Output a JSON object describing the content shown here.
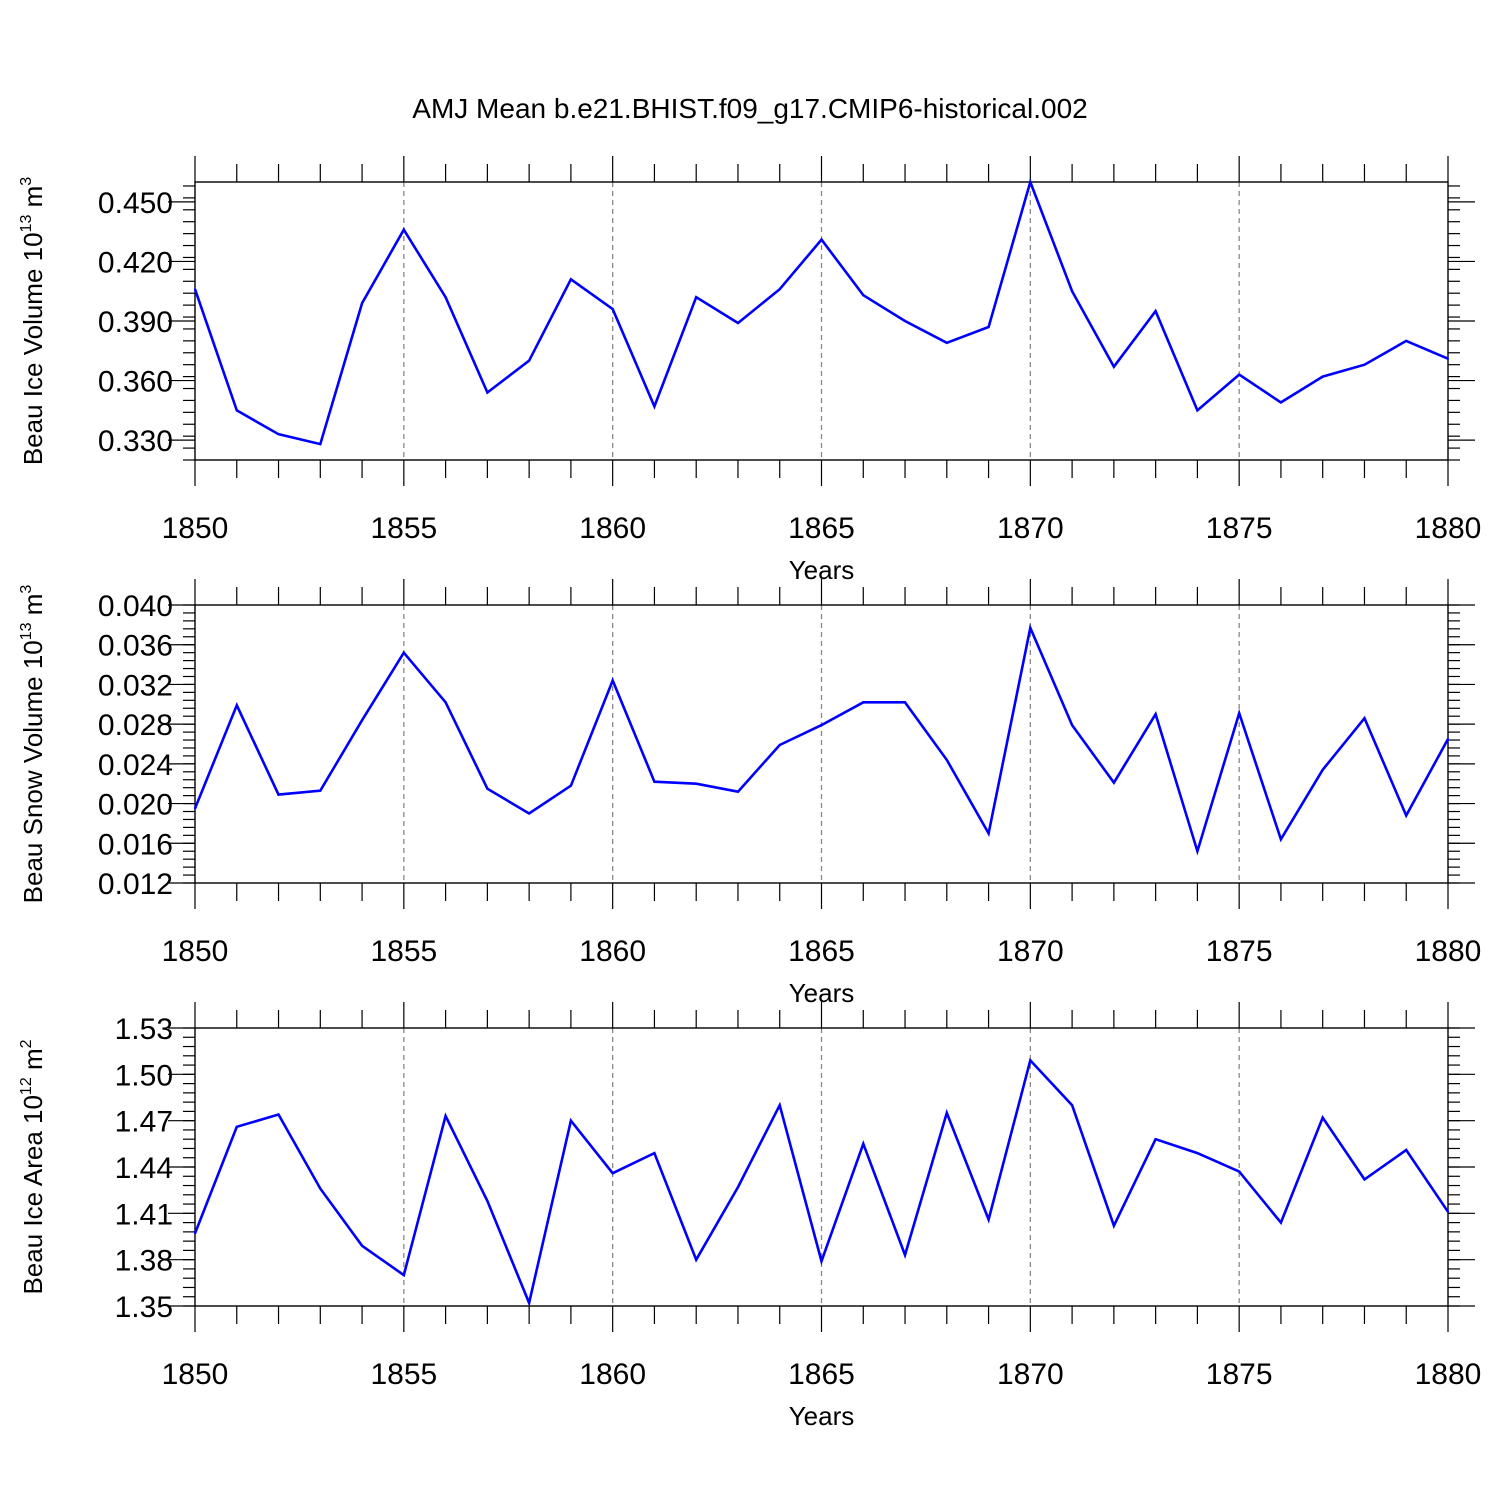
{
  "figure_title": "AMJ Mean b.e21.BHIST.f09_g17.CMIP6-historical.002",
  "colors": {
    "line": "#0000ff",
    "frame": "#000000",
    "grid": "#888888"
  },
  "chart_data": [
    {
      "type": "line",
      "ylabel": {
        "prefix": "Beau Ice Volume 10",
        "exp": "13",
        "unit": " m",
        "unit_exp": "3"
      },
      "xlabel": "Years",
      "xlim": [
        1850,
        1880
      ],
      "ylim": [
        0.32,
        0.46
      ],
      "x_ticks": [
        "1850",
        "1855",
        "1860",
        "1865",
        "1870",
        "1875",
        "1880"
      ],
      "y_ticks": [
        "0.330",
        "0.360",
        "0.390",
        "0.420",
        "0.450"
      ],
      "grid_x": true,
      "series": [
        {
          "name": "Beau Ice Volume",
          "x": [
            1850,
            1851,
            1852,
            1853,
            1854,
            1855,
            1856,
            1857,
            1858,
            1859,
            1860,
            1861,
            1862,
            1863,
            1864,
            1865,
            1866,
            1867,
            1868,
            1869,
            1870,
            1871,
            1872,
            1873,
            1874,
            1875,
            1876,
            1877,
            1878,
            1879,
            1880
          ],
          "values": [
            0.406,
            0.345,
            0.333,
            0.328,
            0.399,
            0.436,
            0.402,
            0.354,
            0.37,
            0.411,
            0.396,
            0.347,
            0.402,
            0.389,
            0.406,
            0.431,
            0.403,
            0.39,
            0.379,
            0.387,
            0.46,
            0.405,
            0.367,
            0.395,
            0.345,
            0.363,
            0.349,
            0.362,
            0.368,
            0.38,
            0.371
          ]
        }
      ]
    },
    {
      "type": "line",
      "ylabel": {
        "prefix": "Beau Snow Volume 10",
        "exp": "13",
        "unit": " m",
        "unit_exp": "3"
      },
      "xlabel": "Years",
      "xlim": [
        1850,
        1880
      ],
      "ylim": [
        0.012,
        0.04
      ],
      "x_ticks": [
        "1850",
        "1855",
        "1860",
        "1865",
        "1870",
        "1875",
        "1880"
      ],
      "y_ticks": [
        "0.012",
        "0.016",
        "0.020",
        "0.024",
        "0.028",
        "0.032",
        "0.036",
        "0.040"
      ],
      "grid_x": true,
      "series": [
        {
          "name": "Beau Snow Volume",
          "x": [
            1850,
            1851,
            1852,
            1853,
            1854,
            1855,
            1856,
            1857,
            1858,
            1859,
            1860,
            1861,
            1862,
            1863,
            1864,
            1865,
            1866,
            1867,
            1868,
            1869,
            1870,
            1871,
            1872,
            1873,
            1874,
            1875,
            1876,
            1877,
            1878,
            1879,
            1880
          ],
          "values": [
            0.0195,
            0.0299,
            0.0209,
            0.0213,
            0.0284,
            0.0352,
            0.0302,
            0.0215,
            0.019,
            0.0218,
            0.0324,
            0.0222,
            0.022,
            0.0212,
            0.0259,
            0.0279,
            0.0302,
            0.0302,
            0.0244,
            0.017,
            0.0377,
            0.0279,
            0.0221,
            0.029,
            0.0152,
            0.0291,
            0.0164,
            0.0234,
            0.0286,
            0.0188,
            0.0265
          ]
        }
      ]
    },
    {
      "type": "line",
      "ylabel": {
        "prefix": "Beau Ice Area 10",
        "exp": "12",
        "unit": " m",
        "unit_exp": "2"
      },
      "xlabel": "Years",
      "xlim": [
        1850,
        1880
      ],
      "ylim": [
        1.35,
        1.53
      ],
      "x_ticks": [
        "1850",
        "1855",
        "1860",
        "1865",
        "1870",
        "1875",
        "1880"
      ],
      "y_ticks": [
        "1.35",
        "1.38",
        "1.41",
        "1.44",
        "1.47",
        "1.50",
        "1.53"
      ],
      "grid_x": true,
      "series": [
        {
          "name": "Beau Ice Area",
          "x": [
            1850,
            1851,
            1852,
            1853,
            1854,
            1855,
            1856,
            1857,
            1858,
            1859,
            1860,
            1861,
            1862,
            1863,
            1864,
            1865,
            1866,
            1867,
            1868,
            1869,
            1870,
            1871,
            1872,
            1873,
            1874,
            1875,
            1876,
            1877,
            1878,
            1879,
            1880
          ],
          "values": [
            1.397,
            1.466,
            1.474,
            1.426,
            1.389,
            1.37,
            1.473,
            1.418,
            1.352,
            1.47,
            1.436,
            1.449,
            1.38,
            1.427,
            1.48,
            1.379,
            1.455,
            1.383,
            1.475,
            1.406,
            1.509,
            1.48,
            1.402,
            1.458,
            1.449,
            1.437,
            1.404,
            1.472,
            1.432,
            1.451,
            1.411
          ]
        }
      ]
    }
  ]
}
